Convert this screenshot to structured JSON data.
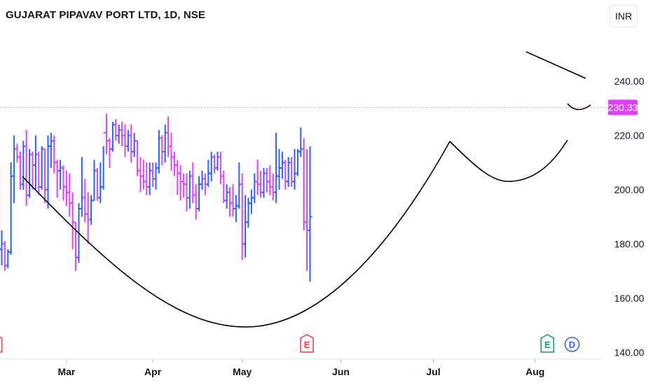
{
  "header": {
    "title": "GUJARAT PIPAVAV PORT LTD, 1D, NSE",
    "currency": "INR"
  },
  "colors": {
    "up": "#2962ff",
    "down": "#e040fb",
    "price_line": "#e040fb",
    "earnings": "#f23645",
    "ex_div": "#089981",
    "dividend": "#2962ff"
  },
  "chart_data": {
    "type": "ohlc_bar",
    "yticks": [
      "240.00",
      "220.00",
      "200.00",
      "180.00",
      "160.00",
      "140.00"
    ],
    "ytick_values": [
      240,
      220,
      200,
      180,
      160,
      140
    ],
    "ylim": [
      137.5,
      256
    ],
    "xticks": [
      {
        "label": "Mar",
        "index": 21
      },
      {
        "label": "Apr",
        "index": 49
      },
      {
        "label": "May",
        "index": 78
      },
      {
        "label": "Jun",
        "index": 110
      },
      {
        "label": "Jul",
        "index": 140
      },
      {
        "label": "Aug",
        "index": 173
      }
    ],
    "last_price": "230.33",
    "last_price_value": 230.33,
    "event_badges": [
      {
        "label": "E",
        "type": "earnings",
        "index": -2
      },
      {
        "label": "E",
        "type": "earnings",
        "index": 99
      },
      {
        "label": "E",
        "type": "ex-dividend",
        "index": 177
      },
      {
        "label": "D",
        "type": "dividend",
        "index": 185
      }
    ],
    "bars": [
      [
        178,
        185,
        172,
        180
      ],
      [
        180,
        181,
        170,
        172
      ],
      [
        172,
        178,
        171,
        177
      ],
      [
        177,
        210,
        176,
        205
      ],
      [
        205,
        220,
        195,
        215
      ],
      [
        215,
        217,
        210,
        212
      ],
      [
        212,
        214,
        200,
        202
      ],
      [
        202,
        218,
        200,
        216
      ],
      [
        216,
        222,
        194,
        198
      ],
      [
        198,
        215,
        197,
        213
      ],
      [
        213,
        214,
        200,
        209
      ],
      [
        209,
        220,
        200,
        213
      ],
      [
        213,
        214,
        198,
        201
      ],
      [
        201,
        216,
        200,
        215
      ],
      [
        215,
        215,
        195,
        200
      ],
      [
        200,
        220,
        193,
        216
      ],
      [
        216,
        221,
        208,
        218
      ],
      [
        218,
        220,
        206,
        210
      ],
      [
        210,
        211,
        197,
        207
      ],
      [
        207,
        211,
        200,
        208
      ],
      [
        208,
        209,
        196,
        201
      ],
      [
        201,
        207,
        194,
        199
      ],
      [
        199,
        206,
        190,
        195
      ],
      [
        195,
        199,
        178,
        188
      ],
      [
        188,
        188,
        170,
        175
      ],
      [
        175,
        195,
        173,
        193
      ],
      [
        193,
        212,
        190,
        197
      ],
      [
        197,
        204,
        188,
        191
      ],
      [
        191,
        199,
        180,
        189
      ],
      [
        189,
        198,
        187,
        196
      ],
      [
        196,
        211,
        196,
        207
      ],
      [
        207,
        208,
        196,
        197
      ],
      [
        197,
        210,
        195,
        201
      ],
      [
        201,
        216,
        200,
        221
      ],
      [
        221,
        228,
        213,
        218
      ],
      [
        218,
        219,
        208,
        215
      ],
      [
        215,
        225,
        214,
        224
      ],
      [
        224,
        226,
        218,
        220
      ],
      [
        220,
        224,
        217,
        222
      ],
      [
        222,
        225,
        216,
        220
      ],
      [
        220,
        224,
        212,
        216
      ],
      [
        216,
        222,
        214,
        220
      ],
      [
        220,
        224,
        210,
        214
      ],
      [
        214,
        221,
        212,
        218
      ],
      [
        218,
        218,
        205,
        207
      ],
      [
        207,
        212,
        199,
        205
      ],
      [
        205,
        211,
        200,
        203
      ],
      [
        203,
        210,
        198,
        201
      ],
      [
        201,
        210,
        198,
        207
      ],
      [
        207,
        210,
        201,
        204
      ],
      [
        204,
        210,
        200,
        208
      ],
      [
        208,
        222,
        206,
        219
      ],
      [
        219,
        220,
        209,
        214
      ],
      [
        214,
        224,
        210,
        221
      ],
      [
        221,
        227,
        212,
        216
      ],
      [
        216,
        221,
        207,
        212
      ],
      [
        212,
        214,
        205,
        209
      ],
      [
        209,
        211,
        198,
        206
      ],
      [
        206,
        209,
        196,
        203
      ],
      [
        203,
        206,
        197,
        202
      ],
      [
        202,
        206,
        192,
        197
      ],
      [
        197,
        207,
        193,
        205
      ],
      [
        205,
        210,
        195,
        198
      ],
      [
        198,
        202,
        189,
        193
      ],
      [
        193,
        205,
        192,
        202
      ],
      [
        202,
        207,
        200,
        204
      ],
      [
        204,
        206,
        198,
        202
      ],
      [
        202,
        211,
        201,
        206
      ],
      [
        206,
        214,
        203,
        212
      ],
      [
        212,
        213,
        206,
        208
      ],
      [
        208,
        214,
        207,
        212
      ],
      [
        212,
        214,
        202,
        205
      ],
      [
        205,
        207,
        195,
        196
      ],
      [
        196,
        202,
        193,
        199
      ],
      [
        199,
        201,
        190,
        195
      ],
      [
        195,
        202,
        190,
        193
      ],
      [
        193,
        198,
        188,
        194
      ],
      [
        194,
        210,
        193,
        202
      ],
      [
        202,
        206,
        174,
        180
      ],
      [
        180,
        198,
        175,
        188
      ],
      [
        188,
        197,
        186,
        195
      ],
      [
        195,
        200,
        191,
        197
      ],
      [
        197,
        206,
        195,
        203
      ],
      [
        203,
        211,
        198,
        202
      ],
      [
        202,
        207,
        197,
        199
      ],
      [
        199,
        208,
        197,
        206
      ],
      [
        206,
        208,
        199,
        203
      ],
      [
        203,
        209,
        198,
        201
      ],
      [
        201,
        206,
        196,
        199
      ],
      [
        199,
        221,
        195,
        205
      ],
      [
        205,
        215,
        200,
        208
      ],
      [
        208,
        214,
        204,
        210
      ],
      [
        210,
        211,
        200,
        203
      ],
      [
        203,
        212,
        201,
        210
      ],
      [
        210,
        212,
        201,
        203
      ],
      [
        203,
        215,
        200,
        206
      ],
      [
        206,
        215,
        205,
        214
      ],
      [
        214,
        223,
        212,
        215
      ],
      [
        215,
        219,
        185,
        188
      ],
      [
        188,
        215,
        170,
        185
      ],
      [
        185,
        216,
        166,
        190
      ]
    ]
  },
  "annotations": {
    "cup_main": "black U curve",
    "cup_right": "black U curve",
    "resistance": "black trendline"
  }
}
